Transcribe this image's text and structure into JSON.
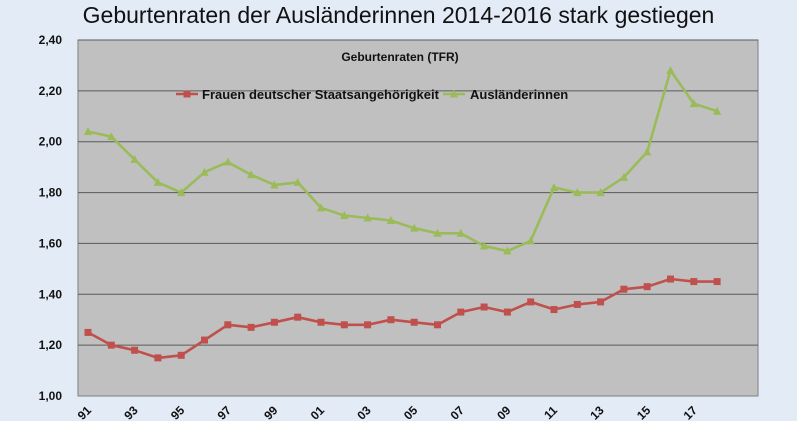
{
  "page": {
    "title": "Geburtenraten der Ausländerinnen 2014-2016 stark gestiegen"
  },
  "chart_data": {
    "type": "line",
    "title": "Geburtenraten (TFR)",
    "xlabel": "",
    "ylabel": "",
    "ylim": [
      1.0,
      2.4
    ],
    "yticks": [
      "1,00",
      "1,20",
      "1,40",
      "1,60",
      "1,80",
      "2,00",
      "2,20",
      "2,40"
    ],
    "xtick_labels": [
      "91",
      "93",
      "95",
      "97",
      "99",
      "01",
      "03",
      "05",
      "07",
      "09",
      "11",
      "13",
      "15",
      "17"
    ],
    "grid": true,
    "legend": "top",
    "x": [
      "1991",
      "1992",
      "1993",
      "1994",
      "1995",
      "1996",
      "1997",
      "1998",
      "1999",
      "2000",
      "2001",
      "2002",
      "2003",
      "2004",
      "2005",
      "2006",
      "2007",
      "2008",
      "2009",
      "2010",
      "2011",
      "2012",
      "2013",
      "2014",
      "2015",
      "2016",
      "2017",
      "2018"
    ],
    "series": [
      {
        "name": "Frauen deutscher Staatsangehörigkeit",
        "color": "#c0504d",
        "marker": "square",
        "values": [
          1.25,
          1.2,
          1.18,
          1.15,
          1.16,
          1.22,
          1.28,
          1.27,
          1.29,
          1.31,
          1.29,
          1.28,
          1.28,
          1.3,
          1.29,
          1.28,
          1.33,
          1.35,
          1.33,
          1.37,
          1.34,
          1.36,
          1.37,
          1.42,
          1.43,
          1.46,
          1.45,
          1.45
        ]
      },
      {
        "name": "Ausländerinnen",
        "color": "#9bbb59",
        "marker": "triangle",
        "values": [
          2.04,
          2.02,
          1.93,
          1.84,
          1.8,
          1.88,
          1.92,
          1.87,
          1.83,
          1.84,
          1.74,
          1.71,
          1.7,
          1.69,
          1.66,
          1.64,
          1.64,
          1.59,
          1.57,
          1.61,
          1.82,
          1.8,
          1.8,
          1.86,
          1.96,
          2.28,
          2.15,
          2.12
        ]
      }
    ]
  }
}
